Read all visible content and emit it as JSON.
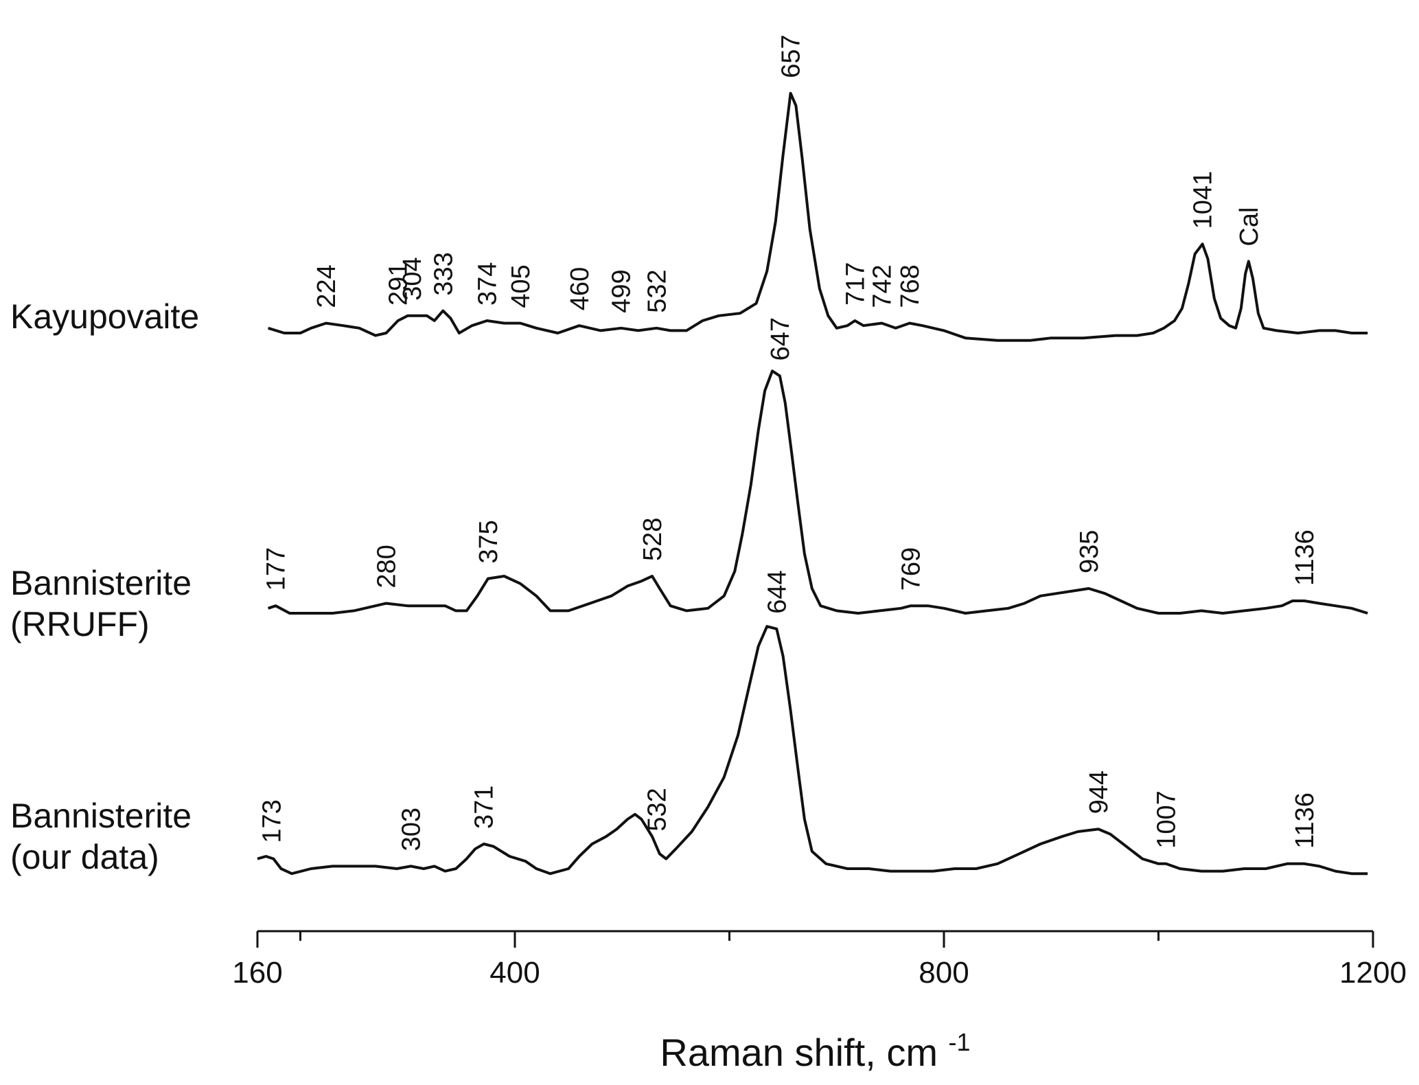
{
  "chart_data": {
    "type": "line",
    "title": "",
    "xlabel": "Raman shift, cm",
    "xlabel_superscript": "-1",
    "ylabel": "",
    "xlim": [
      160,
      1200
    ],
    "xticks": [
      160,
      400,
      800,
      1200
    ],
    "minor_xticks": [
      200,
      600,
      1000
    ],
    "grid": false,
    "legend": "none",
    "line_color": "#111111",
    "series": [
      {
        "name": "Kayupovaite",
        "label_lines": [
          "Kayupovaite"
        ],
        "peaks": [
          {
            "x": 224,
            "label": "224"
          },
          {
            "x": 291,
            "label": "291"
          },
          {
            "x": 304,
            "label": "304"
          },
          {
            "x": 333,
            "label": "333"
          },
          {
            "x": 374,
            "label": "374"
          },
          {
            "x": 405,
            "label": "405"
          },
          {
            "x": 460,
            "label": "460"
          },
          {
            "x": 499,
            "label": "499"
          },
          {
            "x": 532,
            "label": "532"
          },
          {
            "x": 657,
            "label": "657"
          },
          {
            "x": 717,
            "label": "717"
          },
          {
            "x": 742,
            "label": "742"
          },
          {
            "x": 768,
            "label": "768"
          },
          {
            "x": 1041,
            "label": "1041"
          },
          {
            "x": 1084,
            "label": "Cal"
          }
        ],
        "points": [
          [
            170,
            0.02
          ],
          [
            185,
            0.0
          ],
          [
            200,
            0.0
          ],
          [
            210,
            0.02
          ],
          [
            224,
            0.04
          ],
          [
            240,
            0.03
          ],
          [
            255,
            0.02
          ],
          [
            270,
            -0.01
          ],
          [
            280,
            0.0
          ],
          [
            291,
            0.05
          ],
          [
            300,
            0.07
          ],
          [
            304,
            0.07
          ],
          [
            318,
            0.07
          ],
          [
            325,
            0.05
          ],
          [
            333,
            0.09
          ],
          [
            340,
            0.06
          ],
          [
            348,
            0.0
          ],
          [
            360,
            0.03
          ],
          [
            374,
            0.05
          ],
          [
            390,
            0.04
          ],
          [
            405,
            0.04
          ],
          [
            420,
            0.02
          ],
          [
            440,
            0.0
          ],
          [
            460,
            0.03
          ],
          [
            480,
            0.01
          ],
          [
            499,
            0.02
          ],
          [
            515,
            0.01
          ],
          [
            532,
            0.02
          ],
          [
            545,
            0.01
          ],
          [
            560,
            0.01
          ],
          [
            575,
            0.05
          ],
          [
            590,
            0.07
          ],
          [
            610,
            0.08
          ],
          [
            625,
            0.12
          ],
          [
            635,
            0.25
          ],
          [
            643,
            0.45
          ],
          [
            650,
            0.72
          ],
          [
            657,
            0.97
          ],
          [
            662,
            0.92
          ],
          [
            668,
            0.7
          ],
          [
            675,
            0.42
          ],
          [
            684,
            0.18
          ],
          [
            692,
            0.07
          ],
          [
            700,
            0.02
          ],
          [
            710,
            0.03
          ],
          [
            717,
            0.05
          ],
          [
            725,
            0.03
          ],
          [
            742,
            0.04
          ],
          [
            755,
            0.02
          ],
          [
            768,
            0.04
          ],
          [
            780,
            0.03
          ],
          [
            800,
            0.01
          ],
          [
            820,
            -0.02
          ],
          [
            850,
            -0.03
          ],
          [
            880,
            -0.03
          ],
          [
            900,
            -0.02
          ],
          [
            930,
            -0.02
          ],
          [
            960,
            -0.01
          ],
          [
            980,
            -0.01
          ],
          [
            995,
            0.0
          ],
          [
            1005,
            0.02
          ],
          [
            1015,
            0.05
          ],
          [
            1022,
            0.1
          ],
          [
            1028,
            0.2
          ],
          [
            1034,
            0.32
          ],
          [
            1041,
            0.36
          ],
          [
            1046,
            0.3
          ],
          [
            1052,
            0.14
          ],
          [
            1058,
            0.06
          ],
          [
            1066,
            0.03
          ],
          [
            1072,
            0.02
          ],
          [
            1077,
            0.1
          ],
          [
            1081,
            0.24
          ],
          [
            1084,
            0.29
          ],
          [
            1088,
            0.22
          ],
          [
            1093,
            0.08
          ],
          [
            1098,
            0.02
          ],
          [
            1110,
            0.01
          ],
          [
            1130,
            0.0
          ],
          [
            1150,
            0.01
          ],
          [
            1165,
            0.01
          ],
          [
            1180,
            0.0
          ],
          [
            1195,
            0.0
          ]
        ]
      },
      {
        "name": "Bannisterite (RRUFF)",
        "label_lines": [
          "Bannisterite",
          "(RRUFF)"
        ],
        "peaks": [
          {
            "x": 177,
            "label": "177"
          },
          {
            "x": 280,
            "label": "280"
          },
          {
            "x": 375,
            "label": "375"
          },
          {
            "x": 528,
            "label": "528"
          },
          {
            "x": 647,
            "label": "647"
          },
          {
            "x": 769,
            "label": "769"
          },
          {
            "x": 935,
            "label": "935"
          },
          {
            "x": 1136,
            "label": "1136"
          }
        ],
        "points": [
          [
            170,
            0.02
          ],
          [
            177,
            0.03
          ],
          [
            190,
            0.0
          ],
          [
            210,
            0.0
          ],
          [
            230,
            0.0
          ],
          [
            250,
            0.01
          ],
          [
            270,
            0.03
          ],
          [
            280,
            0.04
          ],
          [
            300,
            0.03
          ],
          [
            320,
            0.03
          ],
          [
            335,
            0.03
          ],
          [
            345,
            0.01
          ],
          [
            355,
            0.01
          ],
          [
            365,
            0.07
          ],
          [
            375,
            0.14
          ],
          [
            390,
            0.15
          ],
          [
            405,
            0.12
          ],
          [
            420,
            0.07
          ],
          [
            433,
            0.01
          ],
          [
            450,
            0.01
          ],
          [
            470,
            0.04
          ],
          [
            490,
            0.07
          ],
          [
            505,
            0.11
          ],
          [
            518,
            0.13
          ],
          [
            528,
            0.15
          ],
          [
            535,
            0.1
          ],
          [
            545,
            0.03
          ],
          [
            560,
            0.01
          ],
          [
            580,
            0.02
          ],
          [
            595,
            0.07
          ],
          [
            605,
            0.17
          ],
          [
            612,
            0.32
          ],
          [
            620,
            0.52
          ],
          [
            627,
            0.74
          ],
          [
            633,
            0.9
          ],
          [
            640,
            0.98
          ],
          [
            647,
            0.96
          ],
          [
            652,
            0.85
          ],
          [
            658,
            0.65
          ],
          [
            664,
            0.44
          ],
          [
            670,
            0.24
          ],
          [
            677,
            0.1
          ],
          [
            685,
            0.03
          ],
          [
            700,
            0.01
          ],
          [
            720,
            0.0
          ],
          [
            740,
            0.01
          ],
          [
            760,
            0.02
          ],
          [
            769,
            0.03
          ],
          [
            785,
            0.03
          ],
          [
            800,
            0.02
          ],
          [
            820,
            0.0
          ],
          [
            840,
            0.01
          ],
          [
            860,
            0.02
          ],
          [
            875,
            0.04
          ],
          [
            890,
            0.07
          ],
          [
            905,
            0.08
          ],
          [
            920,
            0.09
          ],
          [
            935,
            0.1
          ],
          [
            950,
            0.08
          ],
          [
            965,
            0.05
          ],
          [
            980,
            0.02
          ],
          [
            1000,
            0.0
          ],
          [
            1020,
            0.0
          ],
          [
            1040,
            0.01
          ],
          [
            1060,
            0.0
          ],
          [
            1080,
            0.01
          ],
          [
            1100,
            0.02
          ],
          [
            1115,
            0.03
          ],
          [
            1125,
            0.05
          ],
          [
            1136,
            0.05
          ],
          [
            1150,
            0.04
          ],
          [
            1165,
            0.03
          ],
          [
            1180,
            0.02
          ],
          [
            1195,
            0.0
          ]
        ]
      },
      {
        "name": "Bannisterite (our data)",
        "label_lines": [
          "Bannisterite",
          "(our data)"
        ],
        "peaks": [
          {
            "x": 173,
            "label": "173"
          },
          {
            "x": 303,
            "label": "303"
          },
          {
            "x": 371,
            "label": "371"
          },
          {
            "x": 532,
            "label": "532"
          },
          {
            "x": 644,
            "label": "644"
          },
          {
            "x": 944,
            "label": "944"
          },
          {
            "x": 1007,
            "label": "1007"
          },
          {
            "x": 1136,
            "label": "1136"
          }
        ],
        "points": [
          [
            160,
            0.04
          ],
          [
            168,
            0.05
          ],
          [
            175,
            0.04
          ],
          [
            182,
            0.0
          ],
          [
            192,
            -0.02
          ],
          [
            210,
            0.0
          ],
          [
            230,
            0.01
          ],
          [
            250,
            0.01
          ],
          [
            270,
            0.01
          ],
          [
            290,
            0.0
          ],
          [
            303,
            0.01
          ],
          [
            315,
            0.0
          ],
          [
            325,
            0.01
          ],
          [
            335,
            -0.01
          ],
          [
            345,
            0.0
          ],
          [
            355,
            0.04
          ],
          [
            363,
            0.08
          ],
          [
            371,
            0.1
          ],
          [
            380,
            0.09
          ],
          [
            395,
            0.05
          ],
          [
            410,
            0.03
          ],
          [
            420,
            0.0
          ],
          [
            433,
            -0.02
          ],
          [
            450,
            0.0
          ],
          [
            460,
            0.05
          ],
          [
            472,
            0.1
          ],
          [
            485,
            0.13
          ],
          [
            495,
            0.16
          ],
          [
            505,
            0.2
          ],
          [
            512,
            0.22
          ],
          [
            518,
            0.2
          ],
          [
            528,
            0.13
          ],
          [
            535,
            0.06
          ],
          [
            541,
            0.04
          ],
          [
            550,
            0.08
          ],
          [
            565,
            0.15
          ],
          [
            580,
            0.25
          ],
          [
            595,
            0.37
          ],
          [
            608,
            0.54
          ],
          [
            618,
            0.73
          ],
          [
            627,
            0.9
          ],
          [
            635,
            0.98
          ],
          [
            644,
            0.97
          ],
          [
            650,
            0.86
          ],
          [
            657,
            0.64
          ],
          [
            664,
            0.4
          ],
          [
            670,
            0.2
          ],
          [
            677,
            0.07
          ],
          [
            690,
            0.02
          ],
          [
            710,
            0.0
          ],
          [
            730,
            0.0
          ],
          [
            750,
            -0.01
          ],
          [
            770,
            -0.01
          ],
          [
            790,
            -0.01
          ],
          [
            810,
            0.0
          ],
          [
            830,
            0.0
          ],
          [
            850,
            0.02
          ],
          [
            870,
            0.06
          ],
          [
            890,
            0.1
          ],
          [
            910,
            0.13
          ],
          [
            925,
            0.15
          ],
          [
            944,
            0.16
          ],
          [
            955,
            0.14
          ],
          [
            970,
            0.09
          ],
          [
            985,
            0.04
          ],
          [
            1000,
            0.02
          ],
          [
            1007,
            0.02
          ],
          [
            1020,
            0.0
          ],
          [
            1040,
            -0.01
          ],
          [
            1060,
            -0.01
          ],
          [
            1080,
            0.0
          ],
          [
            1100,
            0.0
          ],
          [
            1120,
            0.02
          ],
          [
            1136,
            0.02
          ],
          [
            1150,
            0.01
          ],
          [
            1165,
            -0.01
          ],
          [
            1180,
            -0.02
          ],
          [
            1195,
            -0.02
          ]
        ]
      }
    ]
  }
}
